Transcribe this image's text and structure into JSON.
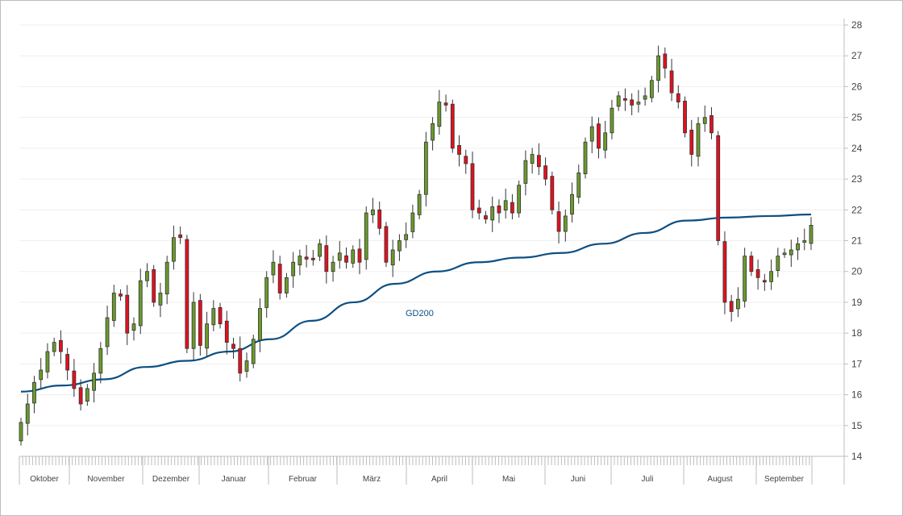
{
  "chart_data": {
    "type": "candlestick",
    "title": "",
    "ylabel": "",
    "xlabel": "",
    "ylim": [
      14,
      28
    ],
    "yticks": [
      14,
      15,
      16,
      17,
      18,
      19,
      20,
      21,
      22,
      23,
      24,
      25,
      26,
      27,
      28
    ],
    "grid": true,
    "months": [
      "Oktober",
      "November",
      "Dezember",
      "Januar",
      "Februar",
      "März",
      "April",
      "Mai",
      "Juni",
      "Juli",
      "August",
      "September"
    ],
    "up_color": "#6a9a2c",
    "down_color": "#e3101f",
    "ma_color": "#0d4f82",
    "ma_label": "GD200",
    "closes": [
      15.1,
      15.7,
      16.4,
      16.8,
      17.4,
      17.7,
      17.4,
      16.8,
      16.2,
      15.7,
      16.2,
      16.7,
      17.5,
      18.5,
      19.3,
      19.2,
      18.0,
      18.3,
      19.7,
      20.0,
      19.0,
      19.3,
      20.3,
      21.1,
      21.1,
      17.5,
      19.0,
      17.6,
      18.3,
      18.8,
      18.3,
      17.7,
      17.5,
      16.7,
      17.1,
      17.8,
      18.8,
      19.8,
      20.3,
      19.3,
      19.8,
      20.3,
      20.5,
      20.4,
      20.4,
      20.9,
      20.0,
      20.3,
      20.6,
      20.3,
      20.7,
      20.3,
      21.9,
      22.0,
      21.4,
      20.3,
      20.7,
      21.0,
      21.2,
      21.9,
      22.5,
      24.2,
      24.8,
      25.5,
      25.4,
      24.0,
      23.8,
      23.5,
      22.0,
      21.9,
      21.7,
      22.1,
      21.9,
      22.3,
      21.9,
      22.8,
      23.6,
      23.8,
      23.4,
      23.0,
      22.0,
      21.3,
      21.8,
      22.5,
      23.2,
      24.2,
      24.7,
      24.0,
      24.5,
      25.3,
      25.7,
      25.6,
      25.4,
      25.5,
      25.7,
      26.2,
      27.0,
      26.6,
      25.8,
      25.5,
      24.5,
      23.8,
      24.8,
      25.0,
      24.5,
      21.0,
      19.0,
      18.7,
      19.1,
      20.5,
      20.0,
      19.8,
      19.7,
      20.0,
      20.5,
      20.6,
      20.7,
      20.9,
      21.0,
      21.5
    ],
    "ma200": [
      16.1,
      16.3,
      16.5,
      16.9,
      17.1,
      17.4,
      17.8,
      18.4,
      19.0,
      19.6,
      20.0,
      20.3,
      20.45,
      20.6,
      20.9,
      21.25,
      21.65,
      21.75,
      21.8,
      21.85
    ]
  }
}
